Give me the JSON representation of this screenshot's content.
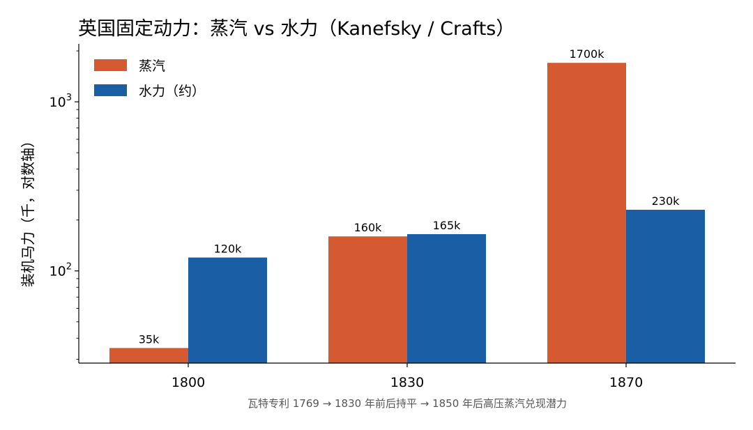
{
  "chart_data": {
    "type": "bar",
    "title": "英国固定动力：蒸汽 vs 水力（Kanefsky / Crafts）",
    "xlabel": "瓦特专利 1769 → 1830 年前后持平 → 1850 年后高压蒸汽兑现潜力",
    "ylabel": "装机马力（千，对数轴）",
    "yscale": "log",
    "ylim": [
      28.5,
      2200
    ],
    "yticks": [
      {
        "value": 100,
        "label": "10",
        "exp": "2"
      },
      {
        "value": 1000,
        "label": "10",
        "exp": "3"
      }
    ],
    "categories": [
      "1800",
      "1830",
      "1870"
    ],
    "series": [
      {
        "name": "蒸汽",
        "color": "#d65a31",
        "values": [
          35,
          160,
          1700
        ],
        "labels": [
          "35k",
          "160k",
          "1700k"
        ]
      },
      {
        "name": "水力（约）",
        "color": "#1a5fa5",
        "values": [
          120,
          165,
          230
        ],
        "labels": [
          "120k",
          "165k",
          "230k"
        ]
      }
    ],
    "legend": "top-left",
    "grid": false
  }
}
